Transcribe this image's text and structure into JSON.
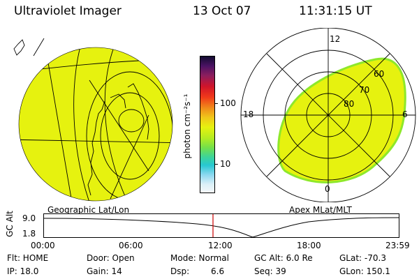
{
  "header": {
    "instrument": "Ultraviolet Imager",
    "date": "13 Oct 07",
    "time": "11:31:15 UT"
  },
  "panels": {
    "geographic": {
      "caption": "Geographic Lat/Lon"
    },
    "apex": {
      "caption": "Apex MLat/MLT",
      "mlt_labels": [
        "12",
        "18",
        "6",
        "0"
      ],
      "lat_labels": [
        "60",
        "70",
        "80"
      ]
    }
  },
  "colorbar": {
    "unit_label": "photon cm⁻²s⁻¹",
    "ticks": [
      "100",
      "10"
    ],
    "scale": "log"
  },
  "timeline": {
    "axis_label": "GC Alt",
    "y_ticks": [
      "9.0",
      "1.8"
    ],
    "x_ticks": [
      "00:00",
      "06:00",
      "12:00",
      "18:00",
      "23:59"
    ],
    "current_time_marker": "11:31"
  },
  "status": {
    "flt": "Flt: HOME",
    "ip": "IP: 18.0",
    "door": "Door: Open",
    "gain": "Gain: 14",
    "mode": "Mode: Normal",
    "dsp": "Dsp:",
    "dsp_value": "6.6",
    "gc_alt": "GC Alt: 6.0 Re",
    "seq": "Seq: 39",
    "glat": "GLat: -70.3",
    "glon": "GLon: 150.1"
  },
  "colors": {
    "emission": "#e6f20f",
    "emission_edge": "#8ee82a",
    "marker": "#cc0000"
  }
}
